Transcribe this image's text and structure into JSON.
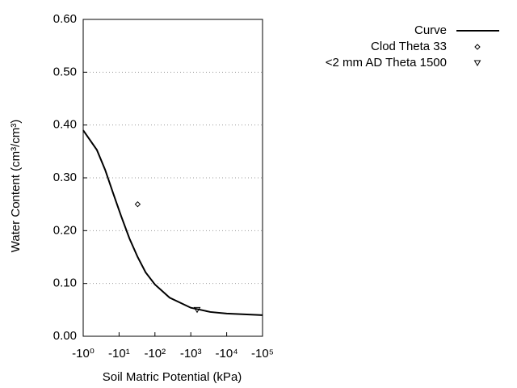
{
  "chart_data": {
    "type": "line",
    "xlabel": "Soil Matric Potential (kPa)",
    "ylabel": "Water Content (cm³/cm³)",
    "xscale": "log",
    "xlim": [
      -1,
      -100000
    ],
    "xticks": [
      {
        "value": -1,
        "label": "-10⁰"
      },
      {
        "value": -10,
        "label": "-10¹"
      },
      {
        "value": -100,
        "label": "-10²"
      },
      {
        "value": -1000,
        "label": "-10³"
      },
      {
        "value": -10000,
        "label": "-10⁴"
      },
      {
        "value": -100000,
        "label": "-10⁵"
      }
    ],
    "ylim": [
      0,
      0.6
    ],
    "yticks": [
      {
        "value": 0,
        "label": "0.00"
      },
      {
        "value": 0.1,
        "label": "0.10"
      },
      {
        "value": 0.2,
        "label": "0.20"
      },
      {
        "value": 0.3,
        "label": "0.30"
      },
      {
        "value": 0.4,
        "label": "0.40"
      },
      {
        "value": 0.5,
        "label": "0.50"
      },
      {
        "value": 0.6,
        "label": "0.60"
      }
    ],
    "grid": true,
    "legend": "outside-right",
    "series": [
      {
        "name": "Curve",
        "color": "#000000",
        "marker": "line",
        "x": [
          -1,
          -2.4,
          -4.1,
          -6.9,
          -11.5,
          -19.5,
          -33,
          -55,
          -100,
          -257,
          -1000,
          -3500,
          -10000,
          -100000
        ],
        "values": [
          0.39,
          0.353,
          0.315,
          0.27,
          0.227,
          0.185,
          0.15,
          0.121,
          0.098,
          0.073,
          0.054,
          0.046,
          0.043,
          0.04
        ]
      },
      {
        "name": "Clod Theta 33",
        "color": "#000000",
        "marker": "diamond",
        "x": [
          -33
        ],
        "values": [
          0.25
        ]
      },
      {
        "name": "<2 mm AD Theta 1500",
        "color": "#000000",
        "marker": "triangle-down",
        "x": [
          -1500
        ],
        "values": [
          0.05
        ]
      }
    ]
  }
}
